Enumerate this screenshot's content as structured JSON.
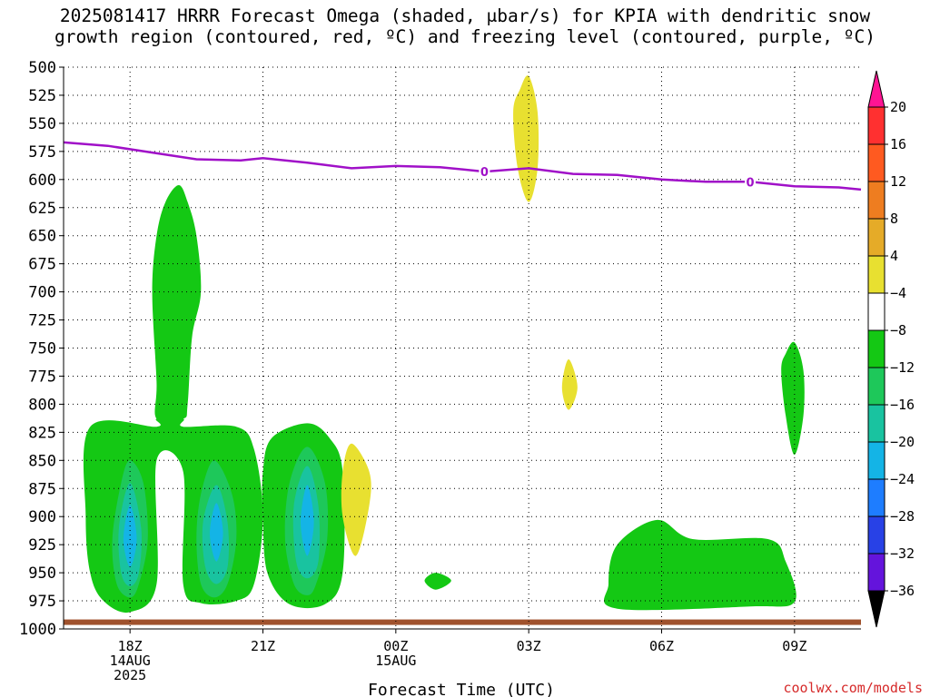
{
  "header": {
    "title_line1": "2025081417 HRRR Forecast Omega (shaded, μbar/s) for KPIA with dendritic snow",
    "title_line2": "growth region (contoured, red, ºC) and freezing level (contoured, purple, ºC)"
  },
  "chart_data": {
    "type": "contour",
    "title": "2025081417 HRRR Forecast Omega (shaded, μbar/s) for KPIA with dendritic snow growth region (contoured, red, ºC) and freezing level (contoured, purple, ºC)",
    "xlabel": "Forecast Time (UTC)",
    "ylabel": "",
    "y_axis": {
      "reversed": true,
      "range": [
        1000,
        500
      ],
      "ticks": [
        500,
        525,
        550,
        575,
        600,
        625,
        650,
        675,
        700,
        725,
        750,
        775,
        800,
        825,
        850,
        875,
        900,
        925,
        950,
        975,
        1000
      ]
    },
    "x_axis": {
      "range_hours": [
        16.5,
        34.5
      ],
      "ticks": [
        {
          "h": 18,
          "lines": [
            "18Z",
            "14AUG",
            "2025"
          ]
        },
        {
          "h": 21,
          "lines": [
            "21Z"
          ]
        },
        {
          "h": 24,
          "lines": [
            "00Z",
            "15AUG"
          ]
        },
        {
          "h": 27,
          "lines": [
            "03Z"
          ]
        },
        {
          "h": 30,
          "lines": [
            "06Z"
          ]
        },
        {
          "h": 33,
          "lines": [
            "09Z"
          ]
        }
      ]
    },
    "grid": true,
    "freezing_level": {
      "color": "#a010c8",
      "contour_label": "0",
      "label_points": [
        {
          "h": 26.0,
          "p": 593
        },
        {
          "h": 32.0,
          "p": 602
        }
      ],
      "points": [
        [
          16.5,
          567
        ],
        [
          17.5,
          570
        ],
        [
          18.5,
          576
        ],
        [
          19.5,
          582
        ],
        [
          20.5,
          583
        ],
        [
          21,
          581
        ],
        [
          22,
          585
        ],
        [
          23,
          590
        ],
        [
          24,
          588
        ],
        [
          25,
          589
        ],
        [
          26,
          593
        ],
        [
          27,
          590
        ],
        [
          28,
          595
        ],
        [
          29,
          596
        ],
        [
          30,
          600
        ],
        [
          31,
          602
        ],
        [
          32,
          602
        ],
        [
          33,
          606
        ],
        [
          34,
          607
        ],
        [
          34.5,
          609
        ]
      ]
    },
    "omega_shading": {
      "units": "μbar/s",
      "regions": [
        {
          "level": -4,
          "points": [
            [
              17.1,
              820
            ],
            [
              18.6,
              820
            ],
            [
              18.6,
              813
            ],
            [
              19.2,
              813
            ],
            [
              19.2,
              820
            ],
            [
              20.4,
              820
            ],
            [
              20.8,
              840
            ],
            [
              21.0,
              900
            ],
            [
              20.8,
              960
            ],
            [
              20.4,
              975
            ],
            [
              19.6,
              977
            ],
            [
              19.2,
              960
            ],
            [
              19.2,
              860
            ],
            [
              18.6,
              850
            ],
            [
              18.6,
              960
            ],
            [
              18.0,
              985
            ],
            [
              17.4,
              975
            ],
            [
              17.1,
              950
            ],
            [
              17.0,
              900
            ]
          ]
        },
        {
          "level": -4,
          "points": [
            [
              19.1,
              605
            ],
            [
              19.3,
              620
            ],
            [
              19.5,
              650
            ],
            [
              19.6,
              700
            ],
            [
              19.4,
              740
            ],
            [
              19.3,
              800
            ],
            [
              19.2,
              813
            ],
            [
              18.6,
              813
            ],
            [
              18.6,
              780
            ],
            [
              18.5,
              700
            ],
            [
              18.6,
              650
            ],
            [
              18.8,
              620
            ]
          ]
        },
        {
          "level": -4,
          "points": [
            [
              21.2,
              830
            ],
            [
              22.0,
              817
            ],
            [
              22.5,
              830
            ],
            [
              22.8,
              860
            ],
            [
              22.8,
              950
            ],
            [
              22.4,
              978
            ],
            [
              21.6,
              978
            ],
            [
              21.1,
              950
            ],
            [
              21.0,
              900
            ],
            [
              21.0,
              860
            ]
          ]
        },
        {
          "level": -4,
          "points": [
            [
              29.0,
              925
            ],
            [
              29.9,
              903
            ],
            [
              30.7,
              920
            ],
            [
              32.4,
              920
            ],
            [
              32.8,
              940
            ],
            [
              33.0,
              976
            ],
            [
              32.0,
              980
            ],
            [
              29.0,
              982
            ],
            [
              28.8,
              960
            ]
          ]
        },
        {
          "level": -4,
          "points": [
            [
              33.0,
              745
            ],
            [
              33.2,
              770
            ],
            [
              33.2,
              810
            ],
            [
              33.0,
              845
            ],
            [
              32.8,
              810
            ],
            [
              32.7,
              770
            ],
            [
              32.8,
              755
            ]
          ]
        },
        {
          "level": -4,
          "points": [
            [
              24.9,
              950
            ],
            [
              25.25,
              957
            ],
            [
              24.9,
              965
            ],
            [
              24.65,
              957
            ]
          ]
        },
        {
          "level": 4,
          "points": [
            [
              27.0,
              508
            ],
            [
              27.2,
              540
            ],
            [
              27.2,
              590
            ],
            [
              27.0,
              620
            ],
            [
              26.75,
              590
            ],
            [
              26.65,
              540
            ],
            [
              26.8,
              520
            ]
          ]
        },
        {
          "level": 4,
          "points": [
            [
              23.0,
              835
            ],
            [
              23.4,
              860
            ],
            [
              23.4,
              890
            ],
            [
              23.1,
              935
            ],
            [
              22.8,
              900
            ],
            [
              22.8,
              860
            ]
          ]
        },
        {
          "level": 4,
          "points": [
            [
              27.9,
              760
            ],
            [
              28.1,
              785
            ],
            [
              27.9,
              805
            ],
            [
              27.75,
              785
            ]
          ]
        },
        {
          "level": -8,
          "points": [
            [
              18.0,
              850
            ],
            [
              18.3,
              870
            ],
            [
              18.4,
              920
            ],
            [
              18.2,
              960
            ],
            [
              18.0,
              972
            ],
            [
              17.7,
              960
            ],
            [
              17.6,
              920
            ],
            [
              17.8,
              870
            ]
          ]
        },
        {
          "level": -8,
          "points": [
            [
              19.9,
              850
            ],
            [
              20.3,
              880
            ],
            [
              20.4,
              920
            ],
            [
              20.2,
              960
            ],
            [
              19.9,
              972
            ],
            [
              19.6,
              960
            ],
            [
              19.5,
              920
            ],
            [
              19.6,
              880
            ]
          ]
        },
        {
          "level": -8,
          "points": [
            [
              22.0,
              838
            ],
            [
              22.4,
              870
            ],
            [
              22.45,
              920
            ],
            [
              22.2,
              960
            ],
            [
              22.0,
              970
            ],
            [
              21.7,
              960
            ],
            [
              21.5,
              920
            ],
            [
              21.6,
              870
            ]
          ]
        },
        {
          "level": -12,
          "points": [
            [
              18.0,
              870
            ],
            [
              18.25,
              910
            ],
            [
              18.2,
              950
            ],
            [
              18.0,
              962
            ],
            [
              17.8,
              950
            ],
            [
              17.75,
              910
            ]
          ]
        },
        {
          "level": -12,
          "points": [
            [
              19.95,
              872
            ],
            [
              20.2,
              905
            ],
            [
              20.2,
              945
            ],
            [
              19.95,
              960
            ],
            [
              19.7,
              945
            ],
            [
              19.65,
              905
            ]
          ]
        },
        {
          "level": -12,
          "points": [
            [
              22.0,
              855
            ],
            [
              22.25,
              890
            ],
            [
              22.25,
              940
            ],
            [
              22.0,
              955
            ],
            [
              21.75,
              940
            ],
            [
              21.7,
              890
            ]
          ]
        },
        {
          "level": -16,
          "points": [
            [
              18.0,
              890
            ],
            [
              18.15,
              920
            ],
            [
              18.0,
              945
            ],
            [
              17.85,
              920
            ]
          ]
        },
        {
          "level": -16,
          "points": [
            [
              19.95,
              888
            ],
            [
              20.1,
              915
            ],
            [
              19.95,
              940
            ],
            [
              19.8,
              915
            ]
          ]
        },
        {
          "level": -16,
          "points": [
            [
              22.0,
              872
            ],
            [
              22.15,
              905
            ],
            [
              22.0,
              935
            ],
            [
              21.85,
              905
            ]
          ]
        }
      ]
    },
    "surface_band": {
      "color": "#a0522d",
      "points": [
        [
          16.5,
          994
        ],
        [
          34.5,
          994
        ]
      ]
    },
    "colorbar": {
      "levels": [
        20,
        16,
        12,
        8,
        4,
        -4,
        -8,
        -12,
        -16,
        -20,
        -24,
        -28,
        -32,
        -36
      ],
      "label_levels": [
        "20",
        "16",
        "12",
        "8",
        "4",
        "−4",
        "−8",
        "−12",
        "−16",
        "−20",
        "−24",
        "−28",
        "−32",
        "−36"
      ],
      "colors": [
        "#ff1493",
        "#ff3030",
        "#ff5a20",
        "#ee7d20",
        "#e5ab28",
        "#e8e030",
        "#ffffff",
        "#14c814",
        "#1ec85a",
        "#19c3a0",
        "#14b4e6",
        "#1e7dff",
        "#2841e6",
        "#6414dc",
        "#9610c8",
        "#a0a0a0",
        "#000000"
      ]
    },
    "legend_colors": {
      "-4": "#14c814",
      "-8": "#1ec85a",
      "-12": "#19c3a0",
      "-16": "#14b4e6",
      "4": "#e8e030"
    }
  },
  "footer": {
    "credit": "coolwx.com/models"
  }
}
